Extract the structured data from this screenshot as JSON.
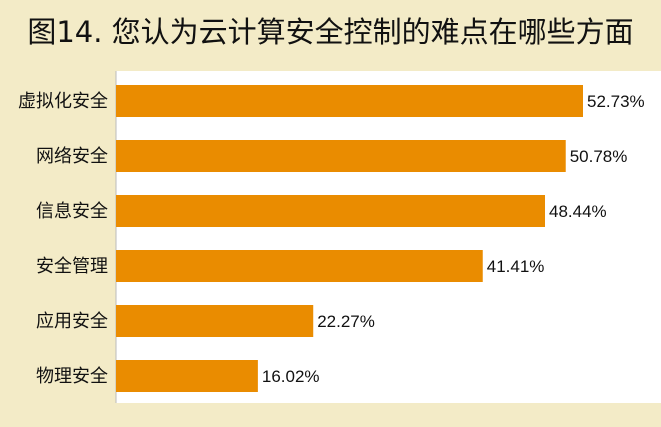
{
  "title": "图14. 您认为云计算安全控制的难点在哪些方面",
  "colors": {
    "background": "#f3ebc7",
    "plot_area": "#ffffff",
    "bar": "#ea8c00",
    "text": "#111111"
  },
  "chart_data": {
    "type": "bar",
    "orientation": "horizontal",
    "categories": [
      "虚拟化安全",
      "网络安全",
      "信息安全",
      "安全管理",
      "应用安全",
      "物理安全"
    ],
    "values": [
      52.73,
      50.78,
      48.44,
      41.41,
      22.27,
      16.02
    ],
    "value_labels": [
      "52.73%",
      "50.78%",
      "48.44%",
      "41.41%",
      "22.27%",
      "16.02%"
    ],
    "xlim": [
      0,
      60
    ],
    "grid": false,
    "legend": "none"
  }
}
